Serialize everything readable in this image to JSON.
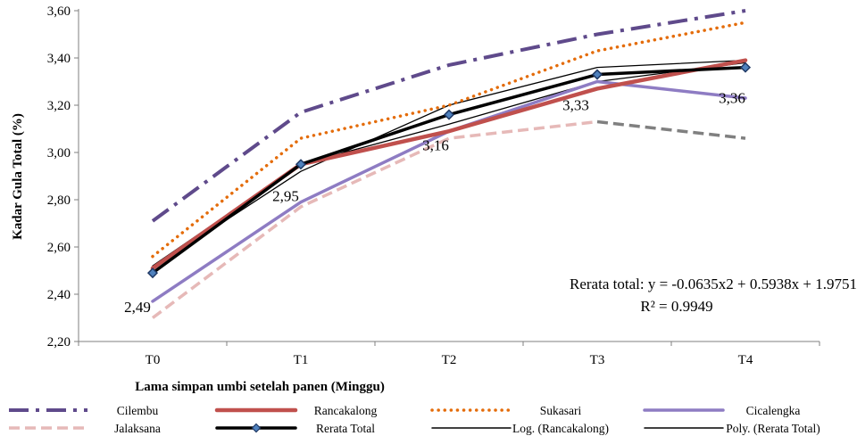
{
  "chart_data": {
    "type": "line",
    "categories": [
      "T0",
      "T1",
      "T2",
      "T3",
      "T4"
    ],
    "xlabel": "Lama simpan umbi setelah panen (Minggu)",
    "ylabel": "Kadar Gula Total (%)",
    "ylim": [
      2.2,
      3.6
    ],
    "yticks": [
      2.2,
      2.4,
      2.6,
      2.8,
      3.0,
      3.2,
      3.4,
      3.6
    ],
    "ytick_labels": [
      "2,20",
      "2,40",
      "2,60",
      "2,80",
      "3,00",
      "3,20",
      "3,40",
      "3,60"
    ],
    "grid": false,
    "legend_position": "bottom",
    "series": [
      {
        "name": "Cilembu",
        "values": [
          2.71,
          3.17,
          3.37,
          3.5,
          3.6
        ],
        "color": "#5f4a8b",
        "style": "dashdot"
      },
      {
        "name": "Rancakalong",
        "values": [
          2.51,
          2.95,
          3.09,
          3.27,
          3.39
        ],
        "color": "#c0504d",
        "style": "solid-thick"
      },
      {
        "name": "Sukasari",
        "values": [
          2.56,
          3.06,
          3.2,
          3.43,
          3.55
        ],
        "color": "#e46c0a",
        "style": "dotted"
      },
      {
        "name": "Cicalengka",
        "values": [
          2.37,
          2.79,
          3.09,
          3.3,
          3.23
        ],
        "color": "#8e7cc3",
        "style": "solid"
      },
      {
        "name": "Jalaksana",
        "values": [
          2.3,
          2.77,
          3.06,
          3.13,
          3.06
        ],
        "color": "#e6b9b8",
        "style": "dashed",
        "tail_color": "#808080"
      },
      {
        "name": "Rerata Total",
        "values": [
          2.49,
          2.95,
          3.16,
          3.33,
          3.36
        ],
        "color": "#000000",
        "style": "solid-marker",
        "data_labels": [
          "2,49",
          "2,95",
          "3,16",
          "3,33",
          "3,36"
        ]
      },
      {
        "name": "Log. (Rancakalong)",
        "values": [
          2.52,
          2.95,
          3.12,
          3.3,
          3.38
        ],
        "color": "#000000",
        "style": "thin"
      },
      {
        "name": "Poly. (Rerata Total)",
        "values": [
          2.51,
          2.92,
          3.2,
          3.36,
          3.39
        ],
        "color": "#000000",
        "style": "thin"
      }
    ],
    "annotation": {
      "line1": "Rerata total: y = -0.0635x2 + 0.5938x + 1.9751",
      "line2": "R² = 0.9949"
    }
  }
}
